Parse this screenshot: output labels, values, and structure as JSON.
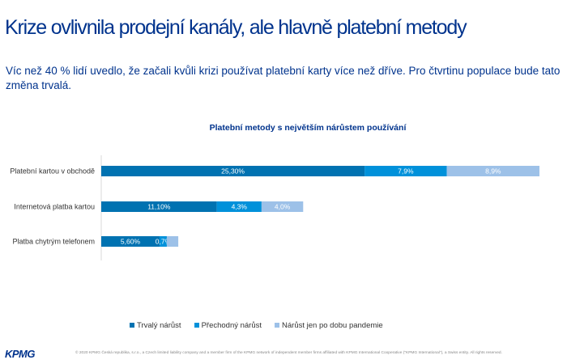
{
  "header": {
    "title": "Krize ovlivnila prodejní kanály, ale hlavně platební metody",
    "subtitle": "Víc než 40 % lidí uvedlo, že začali kvůli krizi používat platební karty více než dříve. Pro čtvrtinu populace bude tato změna trvalá."
  },
  "chart_data": {
    "type": "bar",
    "orientation": "horizontal",
    "stacked": true,
    "title": "Platební metody s největším nárůstem používání",
    "categories": [
      "Platební kartou v obchodě",
      "Internetová platba kartou",
      "Platba chytrým telefonem"
    ],
    "series": [
      {
        "name": "Trvalý nárůst",
        "color": "#0072B1",
        "values": [
          25.3,
          11.1,
          5.6
        ],
        "labels": [
          "25,30%",
          "11,10%",
          "5,60%"
        ]
      },
      {
        "name": "Přechodný nárůst",
        "color": "#0091DA",
        "values": [
          7.9,
          4.3,
          0.7
        ],
        "labels": [
          "7,9%",
          "4,3%",
          "0,7%"
        ]
      },
      {
        "name": "Nárůst jen po dobu pandemie",
        "color": "#9DC1E8",
        "values": [
          8.9,
          4.0,
          1.1
        ],
        "labels": [
          "8,9%",
          "4,0%",
          "1,1%"
        ]
      }
    ],
    "legend_position": "bottom",
    "grid": false
  },
  "footer": {
    "logo": "KPMG",
    "copyright": "© 2020 KPMG Česká republika, s.r.o., a Czech limited liability company and a member firm of the KPMG network of independent member firms affiliated with KPMG International Cooperative (\"KPMG International\"), a Swiss entity. All rights reserved."
  }
}
